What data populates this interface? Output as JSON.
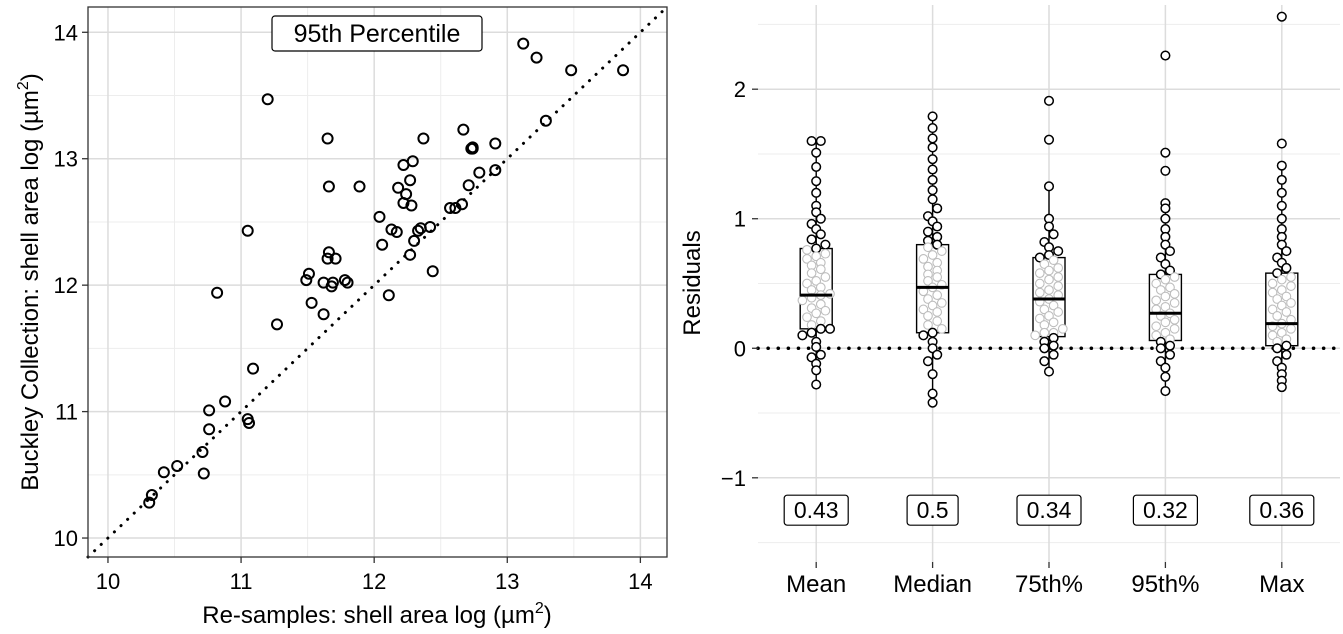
{
  "chart_data": [
    {
      "type": "scatter",
      "title": "95th Percentile",
      "xlabel": "Re-samples: shell area log (µm²)",
      "xlabel_parts": {
        "main": "Re-samples: shell area log (",
        "unit": "µm",
        "sup": "2",
        "close": ")"
      },
      "ylabel": "Buckley Collection: shell area log (µm²)",
      "ylabel_parts": {
        "main": "Buckley Collection: shell area log (",
        "unit": "µm",
        "sup": "2",
        "close": ")"
      },
      "xlim": [
        9.85,
        14.2
      ],
      "ylim": [
        9.85,
        14.2
      ],
      "x_ticks": [
        10,
        11,
        12,
        13,
        14
      ],
      "y_ticks": [
        10,
        11,
        12,
        13,
        14
      ],
      "x_tick_labels": [
        "10",
        "11",
        "12",
        "13",
        "14"
      ],
      "y_tick_labels": [
        "10",
        "11",
        "12",
        "13",
        "14"
      ],
      "grid": true,
      "reference_line": "y = x (dotted)",
      "points": [
        [
          10.31,
          10.28
        ],
        [
          10.33,
          10.34
        ],
        [
          10.42,
          10.52
        ],
        [
          10.52,
          10.57
        ],
        [
          10.71,
          10.68
        ],
        [
          10.72,
          10.51
        ],
        [
          10.76,
          10.86
        ],
        [
          10.76,
          11.01
        ],
        [
          10.82,
          11.94
        ],
        [
          10.88,
          11.08
        ],
        [
          11.05,
          10.94
        ],
        [
          11.06,
          10.91
        ],
        [
          11.05,
          12.43
        ],
        [
          11.09,
          11.34
        ],
        [
          11.2,
          13.47
        ],
        [
          11.27,
          11.69
        ],
        [
          11.49,
          12.04
        ],
        [
          11.51,
          12.09
        ],
        [
          11.53,
          11.86
        ],
        [
          11.62,
          12.02
        ],
        [
          11.62,
          11.77
        ],
        [
          11.65,
          12.21
        ],
        [
          11.65,
          13.16
        ],
        [
          11.66,
          12.26
        ],
        [
          11.66,
          12.78
        ],
        [
          11.68,
          11.99
        ],
        [
          11.69,
          12.02
        ],
        [
          11.71,
          12.21
        ],
        [
          11.78,
          12.04
        ],
        [
          11.8,
          12.02
        ],
        [
          11.89,
          12.78
        ],
        [
          12.04,
          12.54
        ],
        [
          12.06,
          12.32
        ],
        [
          12.11,
          11.92
        ],
        [
          12.13,
          12.44
        ],
        [
          12.17,
          12.42
        ],
        [
          12.18,
          12.77
        ],
        [
          12.22,
          12.95
        ],
        [
          12.22,
          12.65
        ],
        [
          12.24,
          12.72
        ],
        [
          12.27,
          12.24
        ],
        [
          12.27,
          12.83
        ],
        [
          12.28,
          12.63
        ],
        [
          12.29,
          12.98
        ],
        [
          12.3,
          12.35
        ],
        [
          12.33,
          12.43
        ],
        [
          12.35,
          12.45
        ],
        [
          12.37,
          13.16
        ],
        [
          12.42,
          12.46
        ],
        [
          12.44,
          12.11
        ],
        [
          12.57,
          12.61
        ],
        [
          12.61,
          12.61
        ],
        [
          12.66,
          12.64
        ],
        [
          12.67,
          13.23
        ],
        [
          12.71,
          12.79
        ],
        [
          12.73,
          13.08
        ],
        [
          12.74,
          13.09
        ],
        [
          12.74,
          13.08
        ],
        [
          12.79,
          12.89
        ],
        [
          12.91,
          13.12
        ],
        [
          12.91,
          12.91
        ],
        [
          13.12,
          13.91
        ],
        [
          13.22,
          13.8
        ],
        [
          13.29,
          13.3
        ],
        [
          13.48,
          13.7
        ],
        [
          13.87,
          13.7
        ]
      ]
    },
    {
      "type": "box",
      "ylabel": "Residuals",
      "ylim": [
        -1.65,
        2.65
      ],
      "y_ticks": [
        -1,
        0,
        1,
        2
      ],
      "y_tick_labels": [
        "−1",
        "0",
        "1",
        "2"
      ],
      "grid": true,
      "reference_line": "y = 0 (dotted)",
      "categories": [
        "Mean",
        "Median",
        "75th%",
        "95th%",
        "Max"
      ],
      "annotations": [
        "0.43",
        "0.5",
        "0.34",
        "0.32",
        "0.36"
      ],
      "annotation_y": -1.25,
      "boxes": [
        {
          "q1": 0.15,
          "median": 0.41,
          "q3": 0.77,
          "whisker_low": -0.28,
          "whisker_high": 1.6
        },
        {
          "q1": 0.12,
          "median": 0.47,
          "q3": 0.8,
          "whisker_low": -0.42,
          "whisker_high": 1.79
        },
        {
          "q1": 0.09,
          "median": 0.38,
          "q3": 0.7,
          "whisker_low": -0.18,
          "whisker_high": 1.25
        },
        {
          "q1": 0.06,
          "median": 0.27,
          "q3": 0.57,
          "whisker_low": -0.33,
          "whisker_high": 1.12
        },
        {
          "q1": 0.02,
          "median": 0.19,
          "q3": 0.58,
          "whisker_low": -0.3,
          "whisker_high": 1.41
        }
      ],
      "points": [
        [
          -0.28,
          -0.17,
          -0.12,
          -0.07,
          -0.05,
          0.01,
          0.05,
          0.1,
          0.12,
          0.15,
          0.15,
          0.18,
          0.21,
          0.24,
          0.27,
          0.29,
          0.31,
          0.34,
          0.37,
          0.39,
          0.41,
          0.42,
          0.45,
          0.47,
          0.5,
          0.52,
          0.55,
          0.58,
          0.61,
          0.64,
          0.66,
          0.69,
          0.71,
          0.73,
          0.76,
          0.77,
          0.8,
          0.84,
          0.88,
          0.92,
          0.96,
          1.0,
          1.05,
          1.1,
          1.2,
          1.29,
          1.4,
          1.51,
          1.6,
          1.6
        ],
        [
          -0.42,
          -0.35,
          -0.2,
          -0.1,
          -0.05,
          0.0,
          0.05,
          0.1,
          0.12,
          0.15,
          0.18,
          0.21,
          0.25,
          0.28,
          0.3,
          0.33,
          0.35,
          0.38,
          0.41,
          0.44,
          0.47,
          0.49,
          0.52,
          0.55,
          0.57,
          0.6,
          0.63,
          0.66,
          0.69,
          0.72,
          0.75,
          0.78,
          0.8,
          0.83,
          0.86,
          0.9,
          0.94,
          0.98,
          1.02,
          1.08,
          1.15,
          1.22,
          1.3,
          1.38,
          1.46,
          1.55,
          1.62,
          1.7,
          1.79
        ],
        [
          -0.18,
          -0.1,
          -0.05,
          0.0,
          0.02,
          0.05,
          0.08,
          0.1,
          0.12,
          0.12,
          0.15,
          0.18,
          0.2,
          0.23,
          0.25,
          0.28,
          0.3,
          0.33,
          0.36,
          0.38,
          0.41,
          0.43,
          0.45,
          0.48,
          0.5,
          0.53,
          0.55,
          0.58,
          0.6,
          0.62,
          0.65,
          0.68,
          0.7,
          0.72,
          0.75,
          0.78,
          0.82,
          0.88,
          0.94,
          1.0,
          1.25,
          1.61,
          1.91
        ],
        [
          -0.33,
          -0.22,
          -0.15,
          -0.1,
          -0.05,
          0.0,
          0.02,
          0.05,
          0.07,
          0.1,
          0.12,
          0.15,
          0.17,
          0.2,
          0.22,
          0.25,
          0.27,
          0.3,
          0.32,
          0.35,
          0.37,
          0.4,
          0.42,
          0.45,
          0.47,
          0.5,
          0.53,
          0.55,
          0.57,
          0.6,
          0.65,
          0.7,
          0.75,
          0.8,
          0.86,
          0.92,
          1.0,
          1.08,
          1.12,
          1.37,
          1.51,
          2.26
        ],
        [
          -0.3,
          -0.25,
          -0.2,
          -0.15,
          -0.1,
          -0.05,
          0.0,
          0.02,
          0.05,
          0.07,
          0.1,
          0.12,
          0.15,
          0.17,
          0.19,
          0.22,
          0.25,
          0.28,
          0.3,
          0.33,
          0.35,
          0.38,
          0.4,
          0.43,
          0.45,
          0.48,
          0.5,
          0.53,
          0.55,
          0.58,
          0.62,
          0.66,
          0.7,
          0.75,
          0.8,
          0.86,
          0.92,
          1.0,
          1.1,
          1.2,
          1.3,
          1.41,
          1.58,
          2.56
        ]
      ]
    }
  ]
}
